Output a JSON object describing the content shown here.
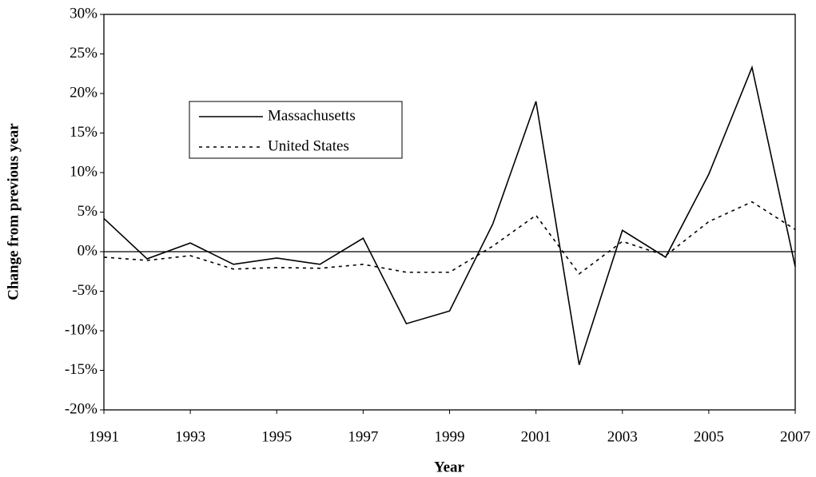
{
  "chart_data": {
    "type": "line",
    "x_label": "Year",
    "y_label": "Change from previous year",
    "x": [
      1991,
      1992,
      1993,
      1994,
      1995,
      1996,
      1997,
      1998,
      1999,
      2000,
      2001,
      2002,
      2003,
      2004,
      2005,
      2006,
      2007
    ],
    "series": [
      {
        "name": "Massachusetts",
        "color": "#000000",
        "style": "solid",
        "values": [
          4.2,
          -0.9,
          1.1,
          -1.6,
          -0.8,
          -1.6,
          1.7,
          -9.1,
          -7.5,
          3.5,
          19.0,
          -14.3,
          2.7,
          -0.7,
          9.8,
          23.3,
          -1.9
        ]
      },
      {
        "name": "United States",
        "color": "#000000",
        "style": "dotted",
        "values": [
          -0.7,
          -1.1,
          -0.5,
          -2.2,
          -2.0,
          -2.1,
          -1.6,
          -2.6,
          -2.6,
          0.7,
          4.6,
          -2.8,
          1.3,
          -0.5,
          3.8,
          6.3,
          2.8
        ]
      }
    ],
    "xlim": [
      1991,
      2007
    ],
    "xticks": [
      1991,
      1993,
      1995,
      1997,
      1999,
      2001,
      2003,
      2005,
      2007
    ],
    "ylim": [
      -20,
      30
    ],
    "yticks": [
      {
        "value": -20,
        "label": "-20%"
      },
      {
        "value": -15,
        "label": "-15%"
      },
      {
        "value": -10,
        "label": "-10%"
      },
      {
        "value": -5,
        "label": "-5%"
      },
      {
        "value": 0,
        "label": "0%"
      },
      {
        "value": 5,
        "label": "5%"
      },
      {
        "value": 10,
        "label": "10%"
      },
      {
        "value": 15,
        "label": "15%"
      },
      {
        "value": 20,
        "label": "20%"
      },
      {
        "value": 25,
        "label": "25%"
      },
      {
        "value": 30,
        "label": "30%"
      }
    ],
    "grid": false,
    "legend": "upper-left"
  }
}
